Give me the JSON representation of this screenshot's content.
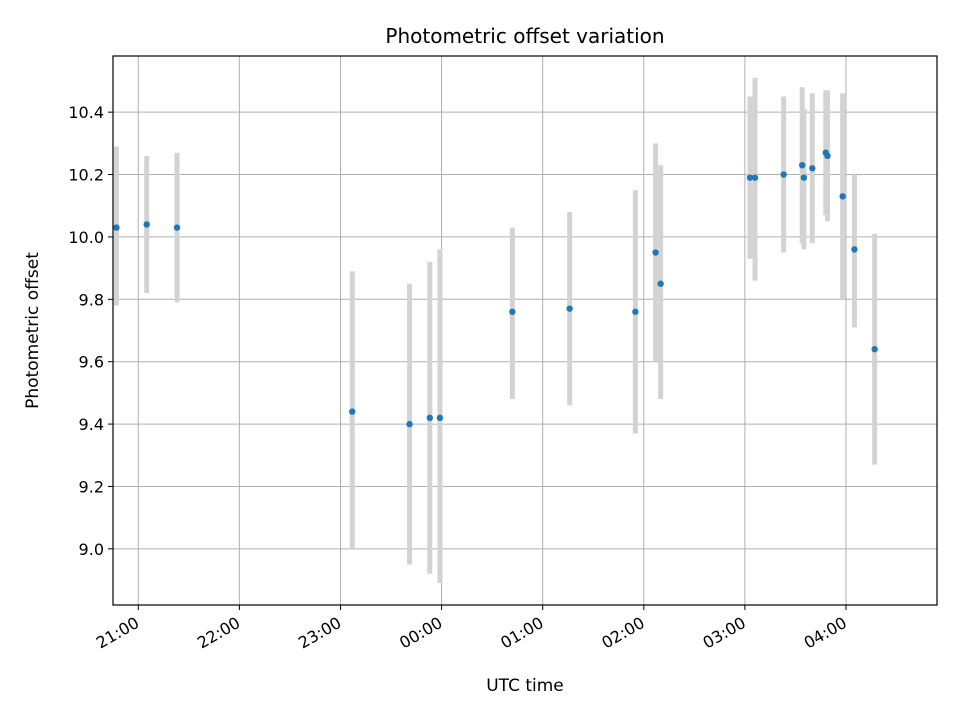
{
  "chart_data": {
    "type": "scatter",
    "title": "Photometric offset variation",
    "xlabel": "UTC time",
    "ylabel": "Photometric offset",
    "x_unit": "UTC time (hh:mm, spanning midnight)",
    "xlim": [
      "20:45",
      "04:54"
    ],
    "ylim": [
      8.82,
      10.58
    ],
    "grid": true,
    "x_ticks": [
      {
        "time": "21:00",
        "label": "21:00"
      },
      {
        "time": "22:00",
        "label": "22:00"
      },
      {
        "time": "23:00",
        "label": "23:00"
      },
      {
        "time": "00:00",
        "label": "00:00"
      },
      {
        "time": "01:00",
        "label": "01:00"
      },
      {
        "time": "02:00",
        "label": "02:00"
      },
      {
        "time": "03:00",
        "label": "03:00"
      },
      {
        "time": "04:00",
        "label": "04:00"
      }
    ],
    "y_ticks": [
      {
        "value": 9.0,
        "label": "9.0"
      },
      {
        "value": 9.2,
        "label": "9.2"
      },
      {
        "value": 9.4,
        "label": "9.4"
      },
      {
        "value": 9.6,
        "label": "9.6"
      },
      {
        "value": 9.8,
        "label": "9.8"
      },
      {
        "value": 10.0,
        "label": "10.0"
      },
      {
        "value": 10.2,
        "label": "10.2"
      },
      {
        "value": 10.4,
        "label": "10.4"
      }
    ],
    "colors": {
      "point": "#1f77b4",
      "errorbar": "#d3d3d3",
      "grid": "#b0b0b0"
    },
    "points": [
      {
        "time": "20:47",
        "y": 10.03,
        "ylow": 9.78,
        "yhigh": 10.29
      },
      {
        "time": "21:05",
        "y": 10.04,
        "ylow": 9.82,
        "yhigh": 10.26
      },
      {
        "time": "21:23",
        "y": 10.03,
        "ylow": 9.79,
        "yhigh": 10.27
      },
      {
        "time": "23:07",
        "y": 9.44,
        "ylow": 9.0,
        "yhigh": 9.89
      },
      {
        "time": "23:41",
        "y": 9.4,
        "ylow": 8.95,
        "yhigh": 9.85
      },
      {
        "time": "23:53",
        "y": 9.42,
        "ylow": 8.92,
        "yhigh": 9.92
      },
      {
        "time": "23:59",
        "y": 9.42,
        "ylow": 8.89,
        "yhigh": 9.96
      },
      {
        "time": "00:42",
        "y": 9.76,
        "ylow": 9.48,
        "yhigh": 10.03
      },
      {
        "time": "01:16",
        "y": 9.77,
        "ylow": 9.46,
        "yhigh": 10.08
      },
      {
        "time": "01:55",
        "y": 9.76,
        "ylow": 9.37,
        "yhigh": 10.15
      },
      {
        "time": "02:07",
        "y": 9.95,
        "ylow": 9.6,
        "yhigh": 10.3
      },
      {
        "time": "02:10",
        "y": 9.85,
        "ylow": 9.48,
        "yhigh": 10.23
      },
      {
        "time": "03:03",
        "y": 10.19,
        "ylow": 9.93,
        "yhigh": 10.45
      },
      {
        "time": "03:06",
        "y": 10.19,
        "ylow": 9.86,
        "yhigh": 10.51
      },
      {
        "time": "03:23",
        "y": 10.2,
        "ylow": 9.95,
        "yhigh": 10.45
      },
      {
        "time": "03:34",
        "y": 10.23,
        "ylow": 9.98,
        "yhigh": 10.48
      },
      {
        "time": "03:35",
        "y": 10.19,
        "ylow": 9.96,
        "yhigh": 10.41
      },
      {
        "time": "03:40",
        "y": 10.22,
        "ylow": 9.98,
        "yhigh": 10.46
      },
      {
        "time": "03:48",
        "y": 10.27,
        "ylow": 10.07,
        "yhigh": 10.47
      },
      {
        "time": "03:49",
        "y": 10.26,
        "ylow": 10.05,
        "yhigh": 10.47
      },
      {
        "time": "03:58",
        "y": 10.13,
        "ylow": 9.8,
        "yhigh": 10.46
      },
      {
        "time": "04:05",
        "y": 9.96,
        "ylow": 9.71,
        "yhigh": 10.2
      },
      {
        "time": "04:17",
        "y": 9.64,
        "ylow": 9.27,
        "yhigh": 10.01
      }
    ]
  }
}
